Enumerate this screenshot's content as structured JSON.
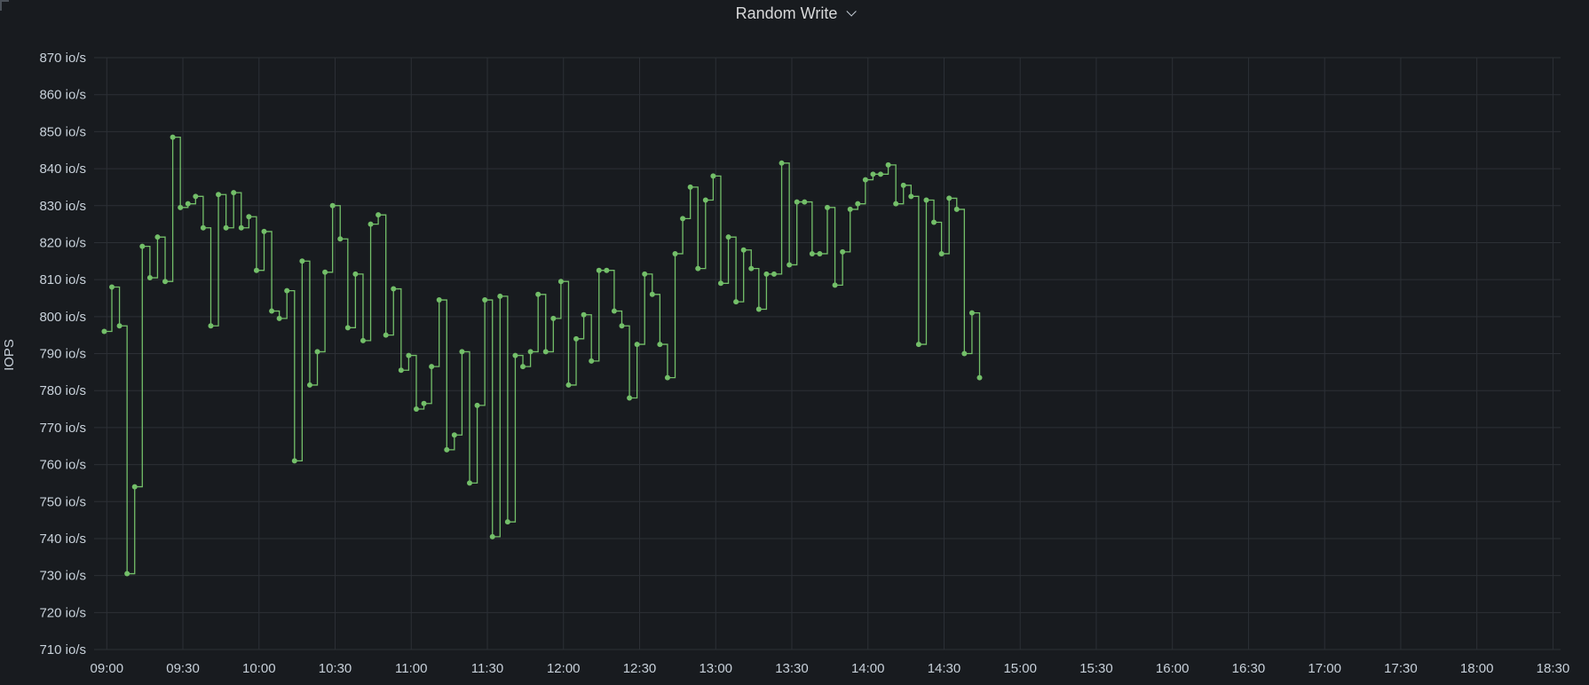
{
  "panel": {
    "title": "Random Write"
  },
  "colors": {
    "background": "#181b1f",
    "grid": "#2c3036",
    "series": "#73bf69",
    "text": "#c7d0d9"
  },
  "icons": {
    "title_menu": "chevron-down-icon",
    "corner": "panel-corner-icon"
  },
  "chart_data": {
    "type": "line",
    "interpolation": "step-after",
    "ylabel": "IOPS",
    "yunit": "io/s",
    "ylim": [
      710,
      870
    ],
    "yticks": [
      710,
      720,
      730,
      740,
      750,
      760,
      770,
      780,
      790,
      800,
      810,
      820,
      830,
      840,
      850,
      860,
      870
    ],
    "xlim": [
      "08:55",
      "18:33"
    ],
    "xticks": [
      "09:00",
      "09:30",
      "10:00",
      "10:30",
      "11:00",
      "11:30",
      "12:00",
      "12:30",
      "13:00",
      "13:30",
      "14:00",
      "14:30",
      "15:00",
      "15:30",
      "16:00",
      "16:30",
      "17:00",
      "17:30",
      "18:00",
      "18:30"
    ],
    "grid": true,
    "legend": "none",
    "series": [
      {
        "points": [
          [
            "08:59",
            796
          ],
          [
            "09:02",
            808
          ],
          [
            "09:05",
            797.5
          ],
          [
            "09:08",
            730.5
          ],
          [
            "09:11",
            754
          ],
          [
            "09:14",
            819
          ],
          [
            "09:17",
            810.5
          ],
          [
            "09:20",
            821.5
          ],
          [
            "09:23",
            809.5
          ],
          [
            "09:26",
            848.5
          ],
          [
            "09:29",
            829.5
          ],
          [
            "09:32",
            830.5
          ],
          [
            "09:35",
            832.5
          ],
          [
            "09:38",
            824
          ],
          [
            "09:41",
            797.5
          ],
          [
            "09:44",
            833
          ],
          [
            "09:47",
            824
          ],
          [
            "09:50",
            833.5
          ],
          [
            "09:53",
            824
          ],
          [
            "09:56",
            827
          ],
          [
            "09:59",
            812.5
          ],
          [
            "10:02",
            823
          ],
          [
            "10:05",
            801.5
          ],
          [
            "10:08",
            799.5
          ],
          [
            "10:11",
            807
          ],
          [
            "10:14",
            761
          ],
          [
            "10:17",
            815
          ],
          [
            "10:20",
            781.5
          ],
          [
            "10:23",
            790.5
          ],
          [
            "10:26",
            812
          ],
          [
            "10:29",
            830
          ],
          [
            "10:32",
            821
          ],
          [
            "10:35",
            797
          ],
          [
            "10:38",
            811.5
          ],
          [
            "10:41",
            793.5
          ],
          [
            "10:44",
            825
          ],
          [
            "10:47",
            827.5
          ],
          [
            "10:50",
            795
          ],
          [
            "10:53",
            807.5
          ],
          [
            "10:56",
            785.5
          ],
          [
            "10:59",
            789.5
          ],
          [
            "11:02",
            775
          ],
          [
            "11:05",
            776.5
          ],
          [
            "11:08",
            786.5
          ],
          [
            "11:11",
            804.5
          ],
          [
            "11:14",
            764
          ],
          [
            "11:17",
            768
          ],
          [
            "11:20",
            790.5
          ],
          [
            "11:23",
            755
          ],
          [
            "11:26",
            776
          ],
          [
            "11:29",
            804.5
          ],
          [
            "11:32",
            740.5
          ],
          [
            "11:35",
            805.5
          ],
          [
            "11:38",
            744.5
          ],
          [
            "11:41",
            789.5
          ],
          [
            "11:44",
            786.5
          ],
          [
            "11:47",
            790.5
          ],
          [
            "11:50",
            806
          ],
          [
            "11:53",
            790.5
          ],
          [
            "11:56",
            799.5
          ],
          [
            "11:59",
            809.5
          ],
          [
            "12:02",
            781.5
          ],
          [
            "12:05",
            794
          ],
          [
            "12:08",
            800.5
          ],
          [
            "12:11",
            788
          ],
          [
            "12:14",
            812.5
          ],
          [
            "12:17",
            812.5
          ],
          [
            "12:20",
            801.5
          ],
          [
            "12:23",
            797.5
          ],
          [
            "12:26",
            778
          ],
          [
            "12:29",
            792.5
          ],
          [
            "12:32",
            811.5
          ],
          [
            "12:35",
            806
          ],
          [
            "12:38",
            792.5
          ],
          [
            "12:41",
            783.5
          ],
          [
            "12:44",
            817
          ],
          [
            "12:47",
            826.5
          ],
          [
            "12:50",
            835
          ],
          [
            "12:53",
            813
          ],
          [
            "12:56",
            831.5
          ],
          [
            "12:59",
            838
          ],
          [
            "13:02",
            809
          ],
          [
            "13:05",
            821.5
          ],
          [
            "13:08",
            804
          ],
          [
            "13:11",
            818
          ],
          [
            "13:14",
            813
          ],
          [
            "13:17",
            802
          ],
          [
            "13:20",
            811.5
          ],
          [
            "13:23",
            811.5
          ],
          [
            "13:26",
            841.5
          ],
          [
            "13:29",
            814
          ],
          [
            "13:32",
            831
          ],
          [
            "13:35",
            831
          ],
          [
            "13:38",
            817
          ],
          [
            "13:41",
            817
          ],
          [
            "13:44",
            829.5
          ],
          [
            "13:47",
            808.5
          ],
          [
            "13:50",
            817.5
          ],
          [
            "13:53",
            829
          ],
          [
            "13:56",
            830.5
          ],
          [
            "13:59",
            837
          ],
          [
            "14:02",
            838.5
          ],
          [
            "14:05",
            838.5
          ],
          [
            "14:08",
            841
          ],
          [
            "14:11",
            830.5
          ],
          [
            "14:14",
            835.5
          ],
          [
            "14:17",
            832.5
          ],
          [
            "14:20",
            792.5
          ],
          [
            "14:23",
            831.5
          ],
          [
            "14:26",
            825.5
          ],
          [
            "14:29",
            817
          ],
          [
            "14:32",
            832
          ],
          [
            "14:35",
            829
          ],
          [
            "14:38",
            790
          ],
          [
            "14:41",
            801
          ],
          [
            "14:44",
            783.5
          ]
        ]
      }
    ]
  }
}
